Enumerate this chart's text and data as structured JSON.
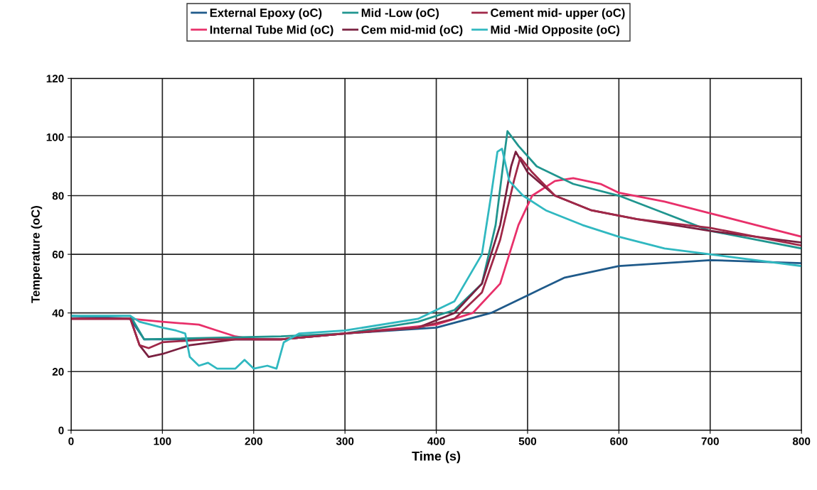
{
  "chart_data": {
    "type": "line",
    "xlabel": "Time (s)",
    "ylabel": "Temperature (oC)",
    "xlim": [
      0,
      800
    ],
    "xticks": [
      0,
      100,
      200,
      300,
      400,
      500,
      600,
      700,
      800
    ],
    "ylim": [
      0,
      120
    ],
    "yticks": [
      0,
      20,
      40,
      60,
      80,
      100,
      120
    ],
    "grid": true,
    "legend": "top",
    "marker": "none",
    "line_style": "solid",
    "series": [
      {
        "name": "External Epoxy (oC)",
        "color": "#1f5a8a",
        "x": [
          0,
          65,
          80,
          230,
          300,
          400,
          460,
          500,
          540,
          600,
          700,
          800
        ],
        "values": [
          39,
          38,
          31,
          31,
          33,
          35,
          40,
          46,
          52,
          56,
          58,
          57
        ]
      },
      {
        "name": "Internal Tube Mid (oC)",
        "color": "#e8306a",
        "x": [
          0,
          65,
          100,
          140,
          160,
          180,
          200,
          230,
          300,
          400,
          440,
          470,
          490,
          505,
          530,
          550,
          580,
          600,
          650,
          700,
          750,
          800
        ],
        "values": [
          38,
          38,
          37,
          36,
          34,
          32,
          31,
          31,
          33,
          36,
          40,
          50,
          70,
          80,
          85,
          86,
          84,
          81,
          78,
          74,
          70,
          66
        ]
      },
      {
        "name": "Mid -Low (oC)",
        "color": "#20958f",
        "x": [
          0,
          65,
          80,
          230,
          300,
          380,
          420,
          450,
          465,
          475,
          478,
          490,
          510,
          550,
          600,
          650,
          700,
          800
        ],
        "values": [
          39,
          39,
          31,
          32,
          33,
          37,
          41,
          50,
          70,
          95,
          102,
          97,
          90,
          84,
          80,
          74,
          68,
          62
        ]
      },
      {
        "name": "Cem mid-mid (oC)",
        "color": "#7a2040",
        "x": [
          0,
          65,
          75,
          85,
          100,
          130,
          180,
          230,
          300,
          380,
          420,
          450,
          470,
          482,
          487,
          500,
          530,
          570,
          620,
          700,
          800
        ],
        "values": [
          38,
          38,
          29,
          25,
          26,
          29,
          31,
          31,
          33,
          35,
          40,
          50,
          70,
          90,
          95,
          88,
          80,
          75,
          72,
          68,
          64
        ]
      },
      {
        "name": "Cement mid- upper (oC)",
        "color": "#a02848",
        "x": [
          0,
          65,
          75,
          85,
          100,
          150,
          230,
          300,
          380,
          420,
          450,
          470,
          485,
          492,
          505,
          530,
          570,
          620,
          700,
          800
        ],
        "values": [
          38,
          38,
          29,
          28,
          30,
          31,
          31,
          33,
          35,
          38,
          47,
          65,
          85,
          93,
          88,
          80,
          75,
          72,
          69,
          63
        ]
      },
      {
        "name": "Mid -Mid Opposite (oC)",
        "color": "#30b8c0",
        "x": [
          0,
          65,
          75,
          100,
          115,
          125,
          130,
          140,
          150,
          160,
          180,
          190,
          200,
          215,
          225,
          233,
          250,
          300,
          380,
          420,
          450,
          460,
          467,
          472,
          480,
          495,
          520,
          560,
          600,
          650,
          700,
          750,
          800
        ],
        "values": [
          39,
          39,
          37,
          35,
          34,
          33,
          25,
          22,
          23,
          21,
          21,
          24,
          21,
          22,
          21,
          30,
          33,
          34,
          38,
          44,
          60,
          80,
          95,
          96,
          85,
          80,
          75,
          70,
          66,
          62,
          60,
          58,
          56
        ]
      }
    ]
  }
}
